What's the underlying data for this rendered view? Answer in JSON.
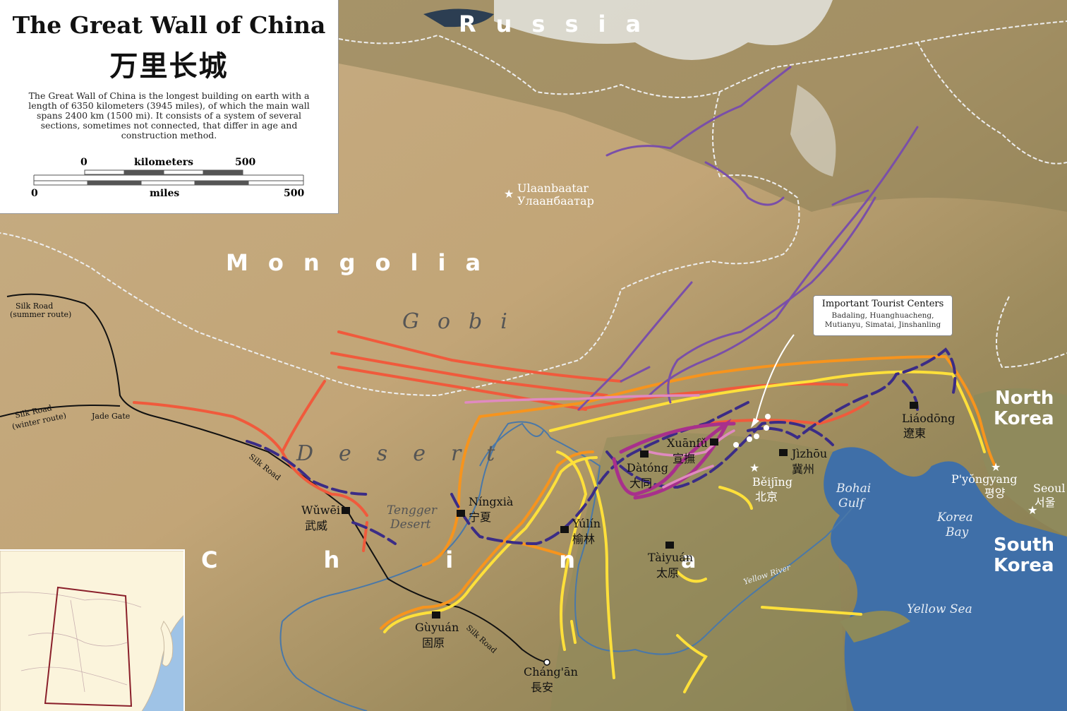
{
  "title": {
    "english": "The Great Wall of China",
    "chinese": "万里长城",
    "description": "The Great Wall of China is the longest building on earth with a length of 6350 kilometers (3945 miles), of which the main wall spans 2400 km (1500 mi). It consists of a system of several sections, sometimes not connected, that differ in age and construction method."
  },
  "scale_bar": {
    "km_start": "0",
    "km_label": "kilometers",
    "km_end": "500",
    "mi_start": "0",
    "mi_label": "miles",
    "mi_end": "500"
  },
  "countries": {
    "russia": "Russia",
    "mongolia": "Mongolia",
    "china": "China",
    "north_korea_1": "North",
    "north_korea_2": "Korea",
    "south_korea_1": "South",
    "south_korea_2": "Korea"
  },
  "regions": {
    "gobi": "Gobi",
    "desert": "Desert",
    "tengger_1": "Tengger",
    "tengger_2": "Desert"
  },
  "water": {
    "bohai_1": "Bohai",
    "bohai_2": "Gulf",
    "korea_bay_1": "Korea",
    "korea_bay_2": "Bay",
    "yellow_sea": "Yellow Sea",
    "yellow_river": "Yellow River"
  },
  "routes": {
    "silk_summer_1": "Silk Road",
    "silk_summer_2": "(summer route)",
    "silk_winter_1": "Silk Road",
    "silk_winter_2": "(winter route)",
    "silk_road_a": "Silk Road",
    "silk_road_b": "Silk Road",
    "jade_gate": "Jade Gate"
  },
  "cities": {
    "ulaanbaatar_latin": "Ulaanbaatar",
    "ulaanbaatar_cyr": "Улаанбаатар",
    "wuwei_latin": "Wǔwēi",
    "wuwei_cn": "武威",
    "ningxia_latin": "Níngxià",
    "ningxia_cn": "宁夏",
    "yulin_latin": "Yúlín",
    "yulin_cn": "榆林",
    "guyuan_latin": "Gùyuán",
    "guyuan_cn": "固原",
    "changan_latin": "Cháng'ān",
    "changan_cn": "長安",
    "datong_latin": "Dàtóng",
    "datong_cn": "大同",
    "xuanfu_latin": "Xuānfǔ",
    "xuanfu_cn": "宣撫",
    "jizhou_latin": "Jìzhōu",
    "jizhou_cn": "冀州",
    "beijing_latin": "Běijīng",
    "beijing_cn": "北京",
    "taiyuan_latin": "Tàiyuán",
    "taiyuan_cn": "太原",
    "liaodong_latin": "Liáodōng",
    "liaodong_cn": "遼東",
    "pyongyang_latin": "P'yŏngyang",
    "pyongyang_kr": "평양",
    "seoul_latin": "Seoul",
    "seoul_kr": "서울"
  },
  "tourist_box": {
    "title": "Important Tourist Centers",
    "line1": "Badaling, Huanghuacheng,",
    "line2": "Mutianyu, Simatai, Jinshanling"
  },
  "colors": {
    "wall_red": "#f05a3c",
    "wall_orange": "#f7941d",
    "wall_yellow": "#ffe03a",
    "wall_purple": "#7a4fa8",
    "wall_navy": "#3b2c86",
    "wall_magenta": "#a8308c",
    "wall_pink": "#e08ac0",
    "sea": "#3f6fa8",
    "river": "#4a78a8",
    "border": "#e8e8e8"
  }
}
